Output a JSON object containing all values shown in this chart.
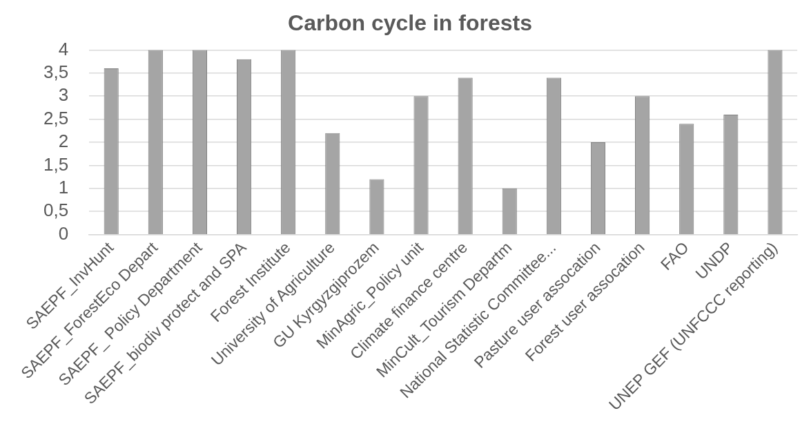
{
  "chart_data": {
    "type": "bar",
    "title": "Carbon cycle in forests",
    "categories": [
      "SAEPF_InvHunt",
      "SAEPF_ForestEco Depart",
      "SAEPF_ Policy Department",
      "SAEPF_biodiv protect and SPA",
      "Forest Institute",
      "University of Agriculture",
      "GU Kyrgyzgiprozem",
      "MinAgric_Policy unit",
      "Climate finance centre",
      "MinCult_Tourism Departm",
      "National Statistic Committee...",
      "Pasture user assocation",
      "Forest user assocation",
      "FAO",
      "UNDP",
      "UNEP GEF (UNFCCC reporting)"
    ],
    "values": [
      3.6,
      4,
      4,
      3.8,
      4,
      2.2,
      1.2,
      3,
      3.4,
      1,
      3.4,
      2,
      3,
      2.4,
      2.6,
      4
    ],
    "color": "#a5a5a5",
    "ylim": [
      0,
      4
    ],
    "yticks": [
      0,
      {
        "value": 0.5,
        "label": "0,5"
      },
      1,
      {
        "value": 1.5,
        "label": "1,5"
      },
      2,
      {
        "value": 2.5,
        "label": "2,5"
      },
      3,
      {
        "value": 3.5,
        "label": "3,5"
      },
      4
    ],
    "grid": "y"
  }
}
